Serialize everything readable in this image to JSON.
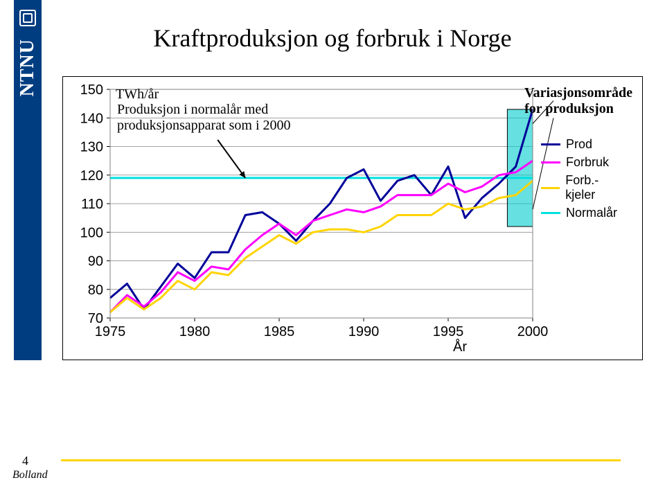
{
  "page": {
    "title": "Kraftproduksjon og forbruk i Norge",
    "page_number": "4",
    "author": "Bolland",
    "ntnu_label": "NTNU"
  },
  "chart": {
    "type": "line",
    "y_unit_label": "TWh/år",
    "x_axis_label": "År",
    "xlim": [
      1975,
      2000
    ],
    "ylim": [
      70,
      150
    ],
    "x_ticks": [
      1975,
      1980,
      1985,
      1990,
      1995,
      2000
    ],
    "y_ticks": [
      70,
      80,
      90,
      100,
      110,
      120,
      130,
      140,
      150
    ],
    "tick_fontsize": 20,
    "tick_font": "Arial",
    "grid_color": "#808080",
    "grid_width": 0.8,
    "background_color": "#ffffff",
    "plot_border_color": "#808080",
    "line_width": 3,
    "annotation": {
      "lines": [
        "Produksjon i normalår med",
        "produksjonsapparat som i 2000"
      ],
      "target_x": 1983,
      "target_y": 119,
      "text_color": "#000000"
    },
    "variation_area": {
      "label_lines": [
        "Variasjonsområde",
        "for produksjon"
      ],
      "x_range": [
        1998.5,
        2000
      ],
      "y_range": [
        102,
        143
      ],
      "fill_color": "#00cccc",
      "fill_opacity": 0.6,
      "border_color": "#000000"
    },
    "legend": {
      "items": [
        {
          "label": "Prod",
          "color": "#000099"
        },
        {
          "label": "Forbruk",
          "color": "#ff00ff"
        },
        {
          "label": "Forb.-kjeler",
          "color": "#ffd400"
        },
        {
          "label": "Normalår",
          "color": "#00e0e0"
        }
      ]
    },
    "series": [
      {
        "name": "Normalår",
        "color": "#00e0e0",
        "x": [
          1975,
          2000
        ],
        "y": [
          119,
          119
        ]
      },
      {
        "name": "Prod",
        "color": "#000099",
        "x": [
          1975,
          1976,
          1977,
          1978,
          1979,
          1980,
          1981,
          1982,
          1983,
          1984,
          1985,
          1986,
          1987,
          1988,
          1989,
          1990,
          1991,
          1992,
          1993,
          1994,
          1995,
          1996,
          1997,
          1998,
          1999,
          2000
        ],
        "y": [
          77,
          82,
          73,
          81,
          89,
          84,
          93,
          93,
          106,
          107,
          103,
          97,
          104,
          110,
          119,
          122,
          111,
          118,
          120,
          113,
          123,
          105,
          112,
          117,
          123,
          143
        ]
      },
      {
        "name": "Forbruk",
        "color": "#ff00ff",
        "x": [
          1975,
          1976,
          1977,
          1978,
          1979,
          1980,
          1981,
          1982,
          1983,
          1984,
          1985,
          1986,
          1987,
          1988,
          1989,
          1990,
          1991,
          1992,
          1993,
          1994,
          1995,
          1996,
          1997,
          1998,
          1999,
          2000
        ],
        "y": [
          72,
          78,
          74,
          79,
          86,
          83,
          88,
          87,
          94,
          99,
          103,
          99,
          104,
          106,
          108,
          107,
          109,
          113,
          113,
          113,
          117,
          114,
          116,
          120,
          121,
          125
        ]
      },
      {
        "name": "Forb.-kjeler",
        "color": "#ffd400",
        "x": [
          1975,
          1976,
          1977,
          1978,
          1979,
          1980,
          1981,
          1982,
          1983,
          1984,
          1985,
          1986,
          1987,
          1988,
          1989,
          1990,
          1991,
          1992,
          1993,
          1994,
          1995,
          1996,
          1997,
          1998,
          1999,
          2000
        ],
        "y": [
          72,
          77,
          73,
          77,
          83,
          80,
          86,
          85,
          91,
          95,
          99,
          96,
          100,
          101,
          101,
          100,
          102,
          106,
          106,
          106,
          110,
          108,
          109,
          112,
          113,
          118
        ]
      }
    ]
  }
}
